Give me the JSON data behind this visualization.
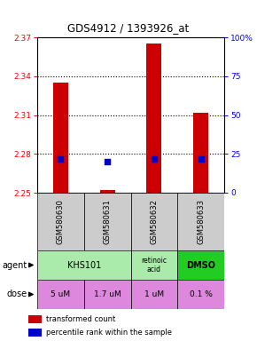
{
  "title": "GDS4912 / 1393926_at",
  "samples": [
    "GSM580630",
    "GSM580631",
    "GSM580632",
    "GSM580633"
  ],
  "bar_values": [
    2.335,
    2.252,
    2.365,
    2.312
  ],
  "bar_bottom": 2.25,
  "percentile_values": [
    22,
    20,
    22,
    22
  ],
  "ylim_left": [
    2.25,
    2.37
  ],
  "ylim_right": [
    0,
    100
  ],
  "yticks_left": [
    2.25,
    2.28,
    2.31,
    2.34,
    2.37
  ],
  "yticks_right": [
    0,
    25,
    50,
    75,
    100
  ],
  "hlines": [
    2.28,
    2.31,
    2.34
  ],
  "bar_color": "#cc0000",
  "dot_color": "#0000cc",
  "dose_labels": [
    "5 uM",
    "1.7 uM",
    "1 uM",
    "0.1 %"
  ],
  "dose_color": "#dd88dd",
  "agent_khs_color": "#aaeaaa",
  "agent_retinoic_color": "#aaeaaa",
  "agent_dmso_color": "#22cc22",
  "sample_bg_color": "#cccccc",
  "legend_bar_label": "transformed count",
  "legend_dot_label": "percentile rank within the sample",
  "agent_row_label": "agent",
  "dose_row_label": "dose"
}
